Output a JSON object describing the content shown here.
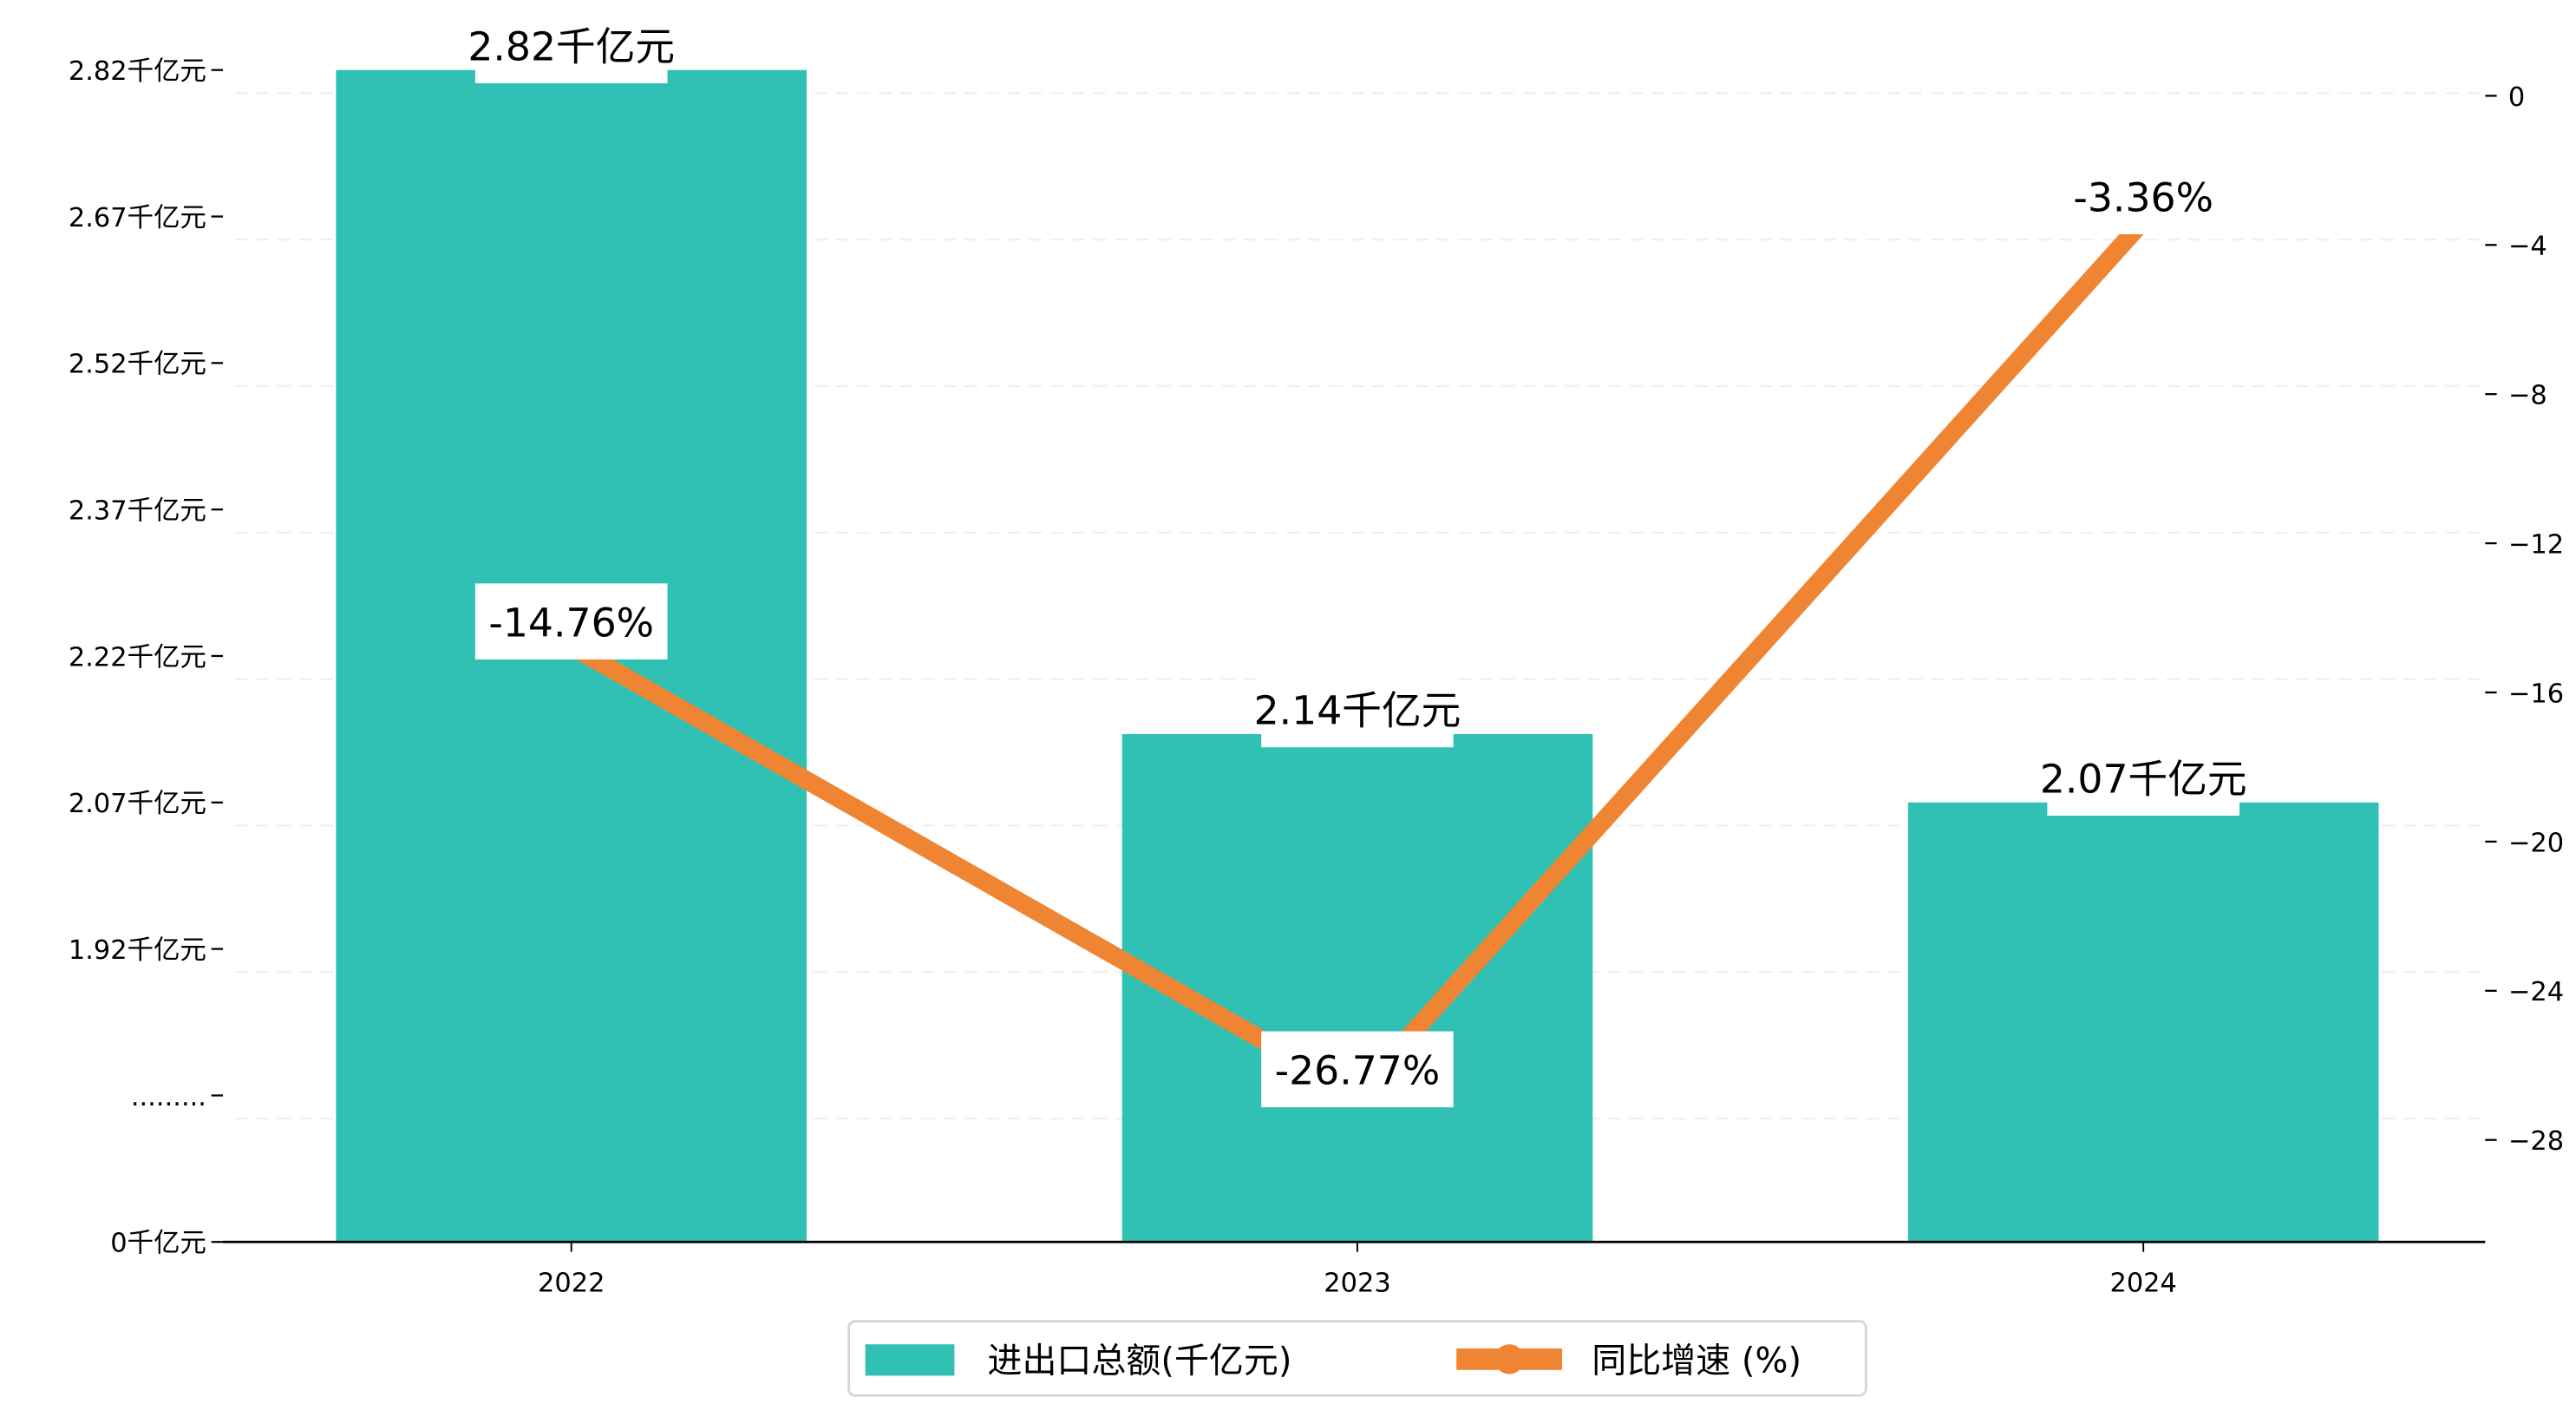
{
  "chart_data": {
    "type": "bar+line",
    "categories": [
      "2022",
      "2023",
      "2024"
    ],
    "series": [
      {
        "name": "进出口总额(千亿元)",
        "type": "bar",
        "axis": "left",
        "color": "#31C1B4",
        "values": [
          2.82,
          2.14,
          2.07
        ],
        "labels": [
          "2.82千亿元",
          "2.14千亿元",
          "2.07千亿元"
        ]
      },
      {
        "name": "同比增速 (%)",
        "type": "line",
        "axis": "right",
        "color": "#EF8432",
        "values": [
          -14.76,
          -26.77,
          -3.36
        ],
        "labels": [
          "-14.76%",
          "-26.77%",
          "-3.36%"
        ]
      }
    ],
    "left_axis": {
      "broken": true,
      "ticks": [
        "0千亿元",
        ".........",
        "1.92千亿元",
        "2.07千亿元",
        "2.22千亿元",
        "2.37千亿元",
        "2.52千亿元",
        "2.67千亿元",
        "2.82千亿元"
      ]
    },
    "right_axis": {
      "ticks": [
        0,
        -4,
        -8,
        -12,
        -16,
        -20,
        -24,
        -28
      ],
      "ylim": [
        -30.8,
        0.6
      ]
    },
    "grid": true,
    "legend_position": "bottom-center"
  }
}
